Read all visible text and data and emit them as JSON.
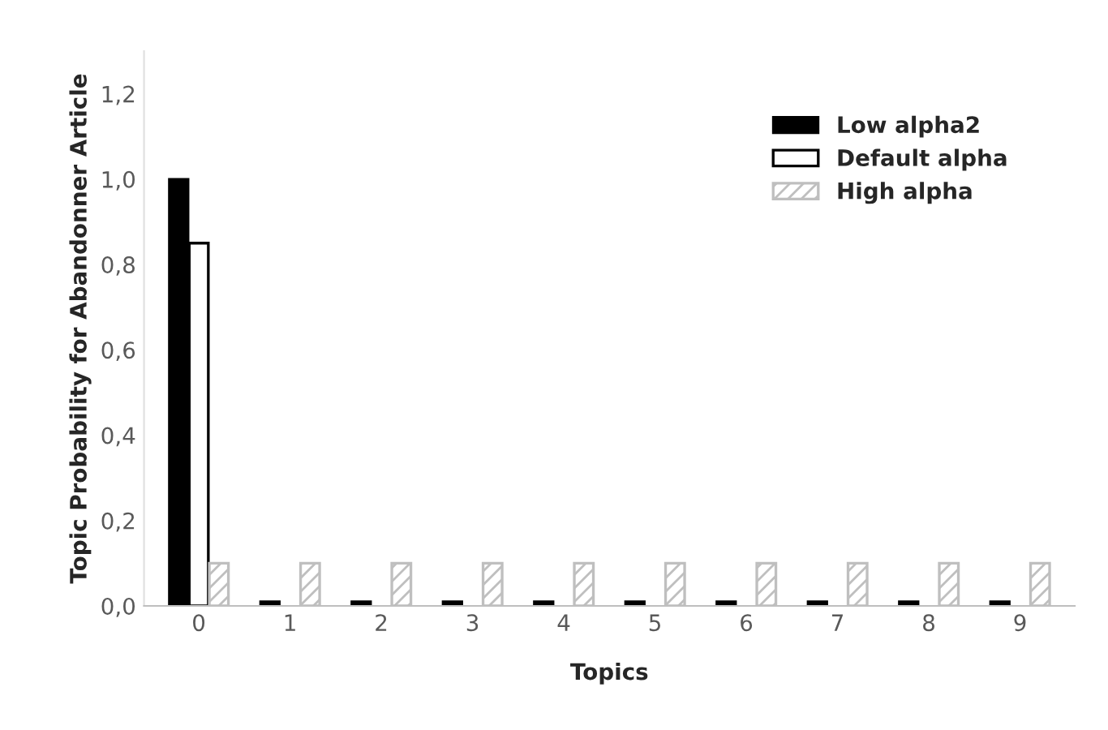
{
  "chart_data": {
    "type": "bar",
    "xlabel": "Topics",
    "ylabel": "Topic Probability for Abandonner Article",
    "categories": [
      "0",
      "1",
      "2",
      "3",
      "4",
      "5",
      "6",
      "7",
      "8",
      "9"
    ],
    "series": [
      {
        "name": "Low alpha2",
        "color": "#000000",
        "values": [
          1.0,
          0.01,
          0.01,
          0.01,
          0.01,
          0.01,
          0.01,
          0.01,
          0.01,
          0.01
        ]
      },
      {
        "name": "Default alpha",
        "color": "#ffffff",
        "values": [
          0.85,
          null,
          null,
          null,
          null,
          null,
          null,
          null,
          null,
          null
        ]
      },
      {
        "name": "High alpha",
        "color": "#bfbfbf",
        "values": [
          0.1,
          0.1,
          0.1,
          0.1,
          0.1,
          0.1,
          0.1,
          0.1,
          0.1,
          0.1
        ]
      }
    ],
    "ylim": [
      0,
      1.3
    ],
    "yticks": [
      {
        "value": 0,
        "label": "0,0"
      },
      {
        "value": 0.2,
        "label": "0,2"
      },
      {
        "value": 0.4,
        "label": "0,4"
      },
      {
        "value": 0.6,
        "label": "0,6"
      },
      {
        "value": 0.8,
        "label": "0,8"
      },
      {
        "value": 1.0,
        "label": "1,0"
      },
      {
        "value": 1.2,
        "label": "1,2"
      }
    ],
    "grid": false,
    "legend": "top right"
  }
}
